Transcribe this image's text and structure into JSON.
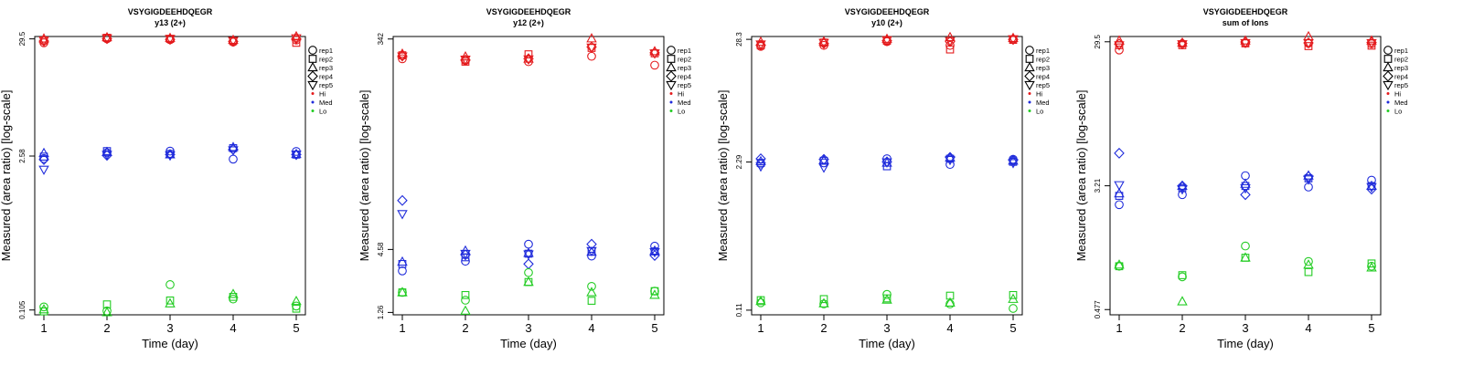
{
  "colors": {
    "Hi": "#e41a1c",
    "Med": "#1f2bdb",
    "Lo": "#22cc22",
    "axis": "#000000"
  },
  "legend": {
    "reps": [
      "rep1",
      "rep2",
      "rep3",
      "rep4",
      "rep5"
    ],
    "groups": [
      "Hi",
      "Med",
      "Lo"
    ],
    "placement": "top-right, outside plot"
  },
  "chart_data": [
    {
      "type": "scatter",
      "scale": "log",
      "title": "VSYGIGDEEHDQEGR",
      "subtitle": "y13 (2+)",
      "xlabel": "Time (day)",
      "ylabel": "Measured (area ratio) [log-scale]",
      "x_ticks": [
        "1",
        "2",
        "3",
        "4",
        "5"
      ],
      "y_ticks": [
        {
          "value": 29.5,
          "label": "29.5"
        },
        {
          "value": 2.58,
          "label": "2.58"
        },
        {
          "value": 0.105,
          "label": "0.105"
        }
      ],
      "ylim": [
        0.095,
        31
      ],
      "series": [
        {
          "group": "Hi",
          "rep": "rep1",
          "x": [
            1,
            2,
            3,
            4,
            5
          ],
          "y": [
            27.2,
            29.5,
            29.0,
            27.6,
            28.8
          ]
        },
        {
          "group": "Hi",
          "rep": "rep2",
          "x": [
            1,
            2,
            3,
            4,
            5
          ],
          "y": [
            28.5,
            30.2,
            29.5,
            28.2,
            27.2
          ]
        },
        {
          "group": "Hi",
          "rep": "rep3",
          "x": [
            1,
            2,
            3,
            4,
            5
          ],
          "y": [
            29.6,
            30.4,
            30.0,
            28.8,
            31.0
          ]
        },
        {
          "group": "Hi",
          "rep": "rep4",
          "x": [
            1,
            2,
            3,
            4,
            5
          ],
          "y": [
            28.2,
            29.6,
            29.2,
            28.0,
            29.6
          ]
        },
        {
          "group": "Hi",
          "rep": "rep5",
          "x": [
            1,
            2,
            3,
            4,
            5
          ],
          "y": [
            28.6,
            30.0,
            29.6,
            28.4,
            30.0
          ]
        },
        {
          "group": "Med",
          "rep": "rep1",
          "x": [
            1,
            2,
            3,
            4,
            5
          ],
          "y": [
            2.45,
            2.76,
            2.86,
            2.42,
            2.84
          ]
        },
        {
          "group": "Med",
          "rep": "rep2",
          "x": [
            1,
            2,
            3,
            4,
            5
          ],
          "y": [
            2.55,
            2.86,
            2.7,
            3.04,
            2.66
          ]
        },
        {
          "group": "Med",
          "rep": "rep3",
          "x": [
            1,
            2,
            3,
            4,
            5
          ],
          "y": [
            2.74,
            2.8,
            2.66,
            3.1,
            2.68
          ]
        },
        {
          "group": "Med",
          "rep": "rep4",
          "x": [
            1,
            2,
            3,
            4,
            5
          ],
          "y": [
            2.4,
            2.62,
            2.66,
            2.96,
            2.66
          ]
        },
        {
          "group": "Med",
          "rep": "rep5",
          "x": [
            1,
            2,
            3,
            4,
            5
          ],
          "y": [
            1.95,
            2.66,
            2.62,
            2.92,
            2.66
          ]
        },
        {
          "group": "Lo",
          "rep": "rep1",
          "x": [
            1,
            2,
            3,
            4,
            5
          ],
          "y": [
            0.112,
            0.103,
            0.178,
            0.132,
            0.114
          ]
        },
        {
          "group": "Lo",
          "rep": "rep2",
          "x": [
            1,
            2,
            3,
            4,
            5
          ],
          "y": [
            0.102,
            0.118,
            0.128,
            0.138,
            0.108
          ]
        },
        {
          "group": "Lo",
          "rep": "rep3",
          "x": [
            1,
            2,
            3,
            4,
            5
          ],
          "y": [
            0.106,
            0.1,
            0.12,
            0.146,
            0.126
          ]
        }
      ]
    },
    {
      "type": "scatter",
      "scale": "log",
      "title": "VSYGIGDEEHDQEGR",
      "subtitle": "y12 (2+)",
      "xlabel": "Time (day)",
      "ylabel": "Measured (area ratio) [log-scale]",
      "x_ticks": [
        "1",
        "2",
        "3",
        "4",
        "5"
      ],
      "y_ticks": [
        {
          "value": 342,
          "label": "342"
        },
        {
          "value": 4.58,
          "label": "4.58"
        },
        {
          "value": 1.26,
          "label": "1.26"
        }
      ],
      "ylim": [
        1.2,
        360
      ],
      "series": [
        {
          "group": "Hi",
          "rep": "rep1",
          "x": [
            1,
            2,
            3,
            4,
            5
          ],
          "y": [
            228,
            220,
            215,
            240,
            200
          ]
        },
        {
          "group": "Hi",
          "rep": "rep2",
          "x": [
            1,
            2,
            3,
            4,
            5
          ],
          "y": [
            245,
            215,
            250,
            285,
            255
          ]
        },
        {
          "group": "Hi",
          "rep": "rep3",
          "x": [
            1,
            2,
            3,
            4,
            5
          ],
          "y": [
            252,
            238,
            228,
            345,
            265
          ]
        },
        {
          "group": "Hi",
          "rep": "rep4",
          "x": [
            1,
            2,
            3,
            4,
            5
          ],
          "y": [
            242,
            222,
            228,
            290,
            258
          ]
        },
        {
          "group": "Hi",
          "rep": "rep5",
          "x": [
            1,
            2,
            3,
            4,
            5
          ],
          "y": [
            240,
            225,
            226,
            288,
            255
          ]
        },
        {
          "group": "Med",
          "rep": "rep1",
          "x": [
            1,
            2,
            3,
            4,
            5
          ],
          "y": [
            2.95,
            3.6,
            5.1,
            4.0,
            4.9
          ]
        },
        {
          "group": "Med",
          "rep": "rep2",
          "x": [
            1,
            2,
            3,
            4,
            5
          ],
          "y": [
            3.4,
            3.9,
            4.2,
            4.4,
            4.4
          ]
        },
        {
          "group": "Med",
          "rep": "rep3",
          "x": [
            1,
            2,
            3,
            4,
            5
          ],
          "y": [
            3.55,
            4.45,
            4.25,
            4.35,
            4.45
          ]
        },
        {
          "group": "Med",
          "rep": "rep4",
          "x": [
            1,
            2,
            3,
            4,
            5
          ],
          "y": [
            12.5,
            4.1,
            3.4,
            5.1,
            4.05
          ]
        },
        {
          "group": "Med",
          "rep": "rep5",
          "x": [
            1,
            2,
            3,
            4,
            5
          ],
          "y": [
            9.5,
            4.2,
            4.15,
            4.45,
            4.35
          ]
        },
        {
          "group": "Lo",
          "rep": "rep1",
          "x": [
            1,
            2,
            3,
            4,
            5
          ],
          "y": [
            1.9,
            1.62,
            2.85,
            2.15,
            1.95
          ]
        },
        {
          "group": "Lo",
          "rep": "rep2",
          "x": [
            1,
            2,
            3,
            4,
            5
          ],
          "y": [
            1.9,
            1.8,
            2.35,
            1.6,
            1.95
          ]
        },
        {
          "group": "Lo",
          "rep": "rep3",
          "x": [
            1,
            2,
            3,
            4,
            5
          ],
          "y": [
            1.9,
            1.3,
            2.35,
            1.9,
            1.8
          ]
        }
      ]
    },
    {
      "type": "scatter",
      "scale": "log",
      "title": "VSYGIGDEEHDQEGR",
      "subtitle": "y10 (2+)",
      "xlabel": "Time (day)",
      "ylabel": "Measured (area ratio) [log-scale]",
      "x_ticks": [
        "1",
        "2",
        "3",
        "4",
        "5"
      ],
      "y_ticks": [
        {
          "value": 28.3,
          "label": "28.3"
        },
        {
          "value": 2.29,
          "label": "2.29"
        },
        {
          "value": 0.11,
          "label": "0.11"
        }
      ],
      "ylim": [
        0.1,
        30
      ],
      "series": [
        {
          "group": "Hi",
          "rep": "rep1",
          "x": [
            1,
            2,
            3,
            4,
            5
          ],
          "y": [
            24.5,
            25.0,
            27.0,
            25.0,
            28.3
          ]
        },
        {
          "group": "Hi",
          "rep": "rep2",
          "x": [
            1,
            2,
            3,
            4,
            5
          ],
          "y": [
            25.0,
            26.5,
            27.5,
            23.0,
            28.0
          ]
        },
        {
          "group": "Hi",
          "rep": "rep3",
          "x": [
            1,
            2,
            3,
            4,
            5
          ],
          "y": [
            26.8,
            27.0,
            28.5,
            29.5,
            29.0
          ]
        },
        {
          "group": "Hi",
          "rep": "rep4",
          "x": [
            1,
            2,
            3,
            4,
            5
          ],
          "y": [
            25.2,
            26.0,
            27.5,
            27.0,
            28.2
          ]
        },
        {
          "group": "Hi",
          "rep": "rep5",
          "x": [
            1,
            2,
            3,
            4,
            5
          ],
          "y": [
            25.6,
            26.4,
            27.9,
            27.4,
            28.5
          ]
        },
        {
          "group": "Med",
          "rep": "rep1",
          "x": [
            1,
            2,
            3,
            4,
            5
          ],
          "y": [
            2.2,
            2.25,
            2.45,
            2.18,
            2.42
          ]
        },
        {
          "group": "Med",
          "rep": "rep2",
          "x": [
            1,
            2,
            3,
            4,
            5
          ],
          "y": [
            2.25,
            2.35,
            2.1,
            2.45,
            2.3
          ]
        },
        {
          "group": "Med",
          "rep": "rep3",
          "x": [
            1,
            2,
            3,
            4,
            5
          ],
          "y": [
            2.32,
            2.38,
            2.25,
            2.5,
            2.35
          ]
        },
        {
          "group": "Med",
          "rep": "rep4",
          "x": [
            1,
            2,
            3,
            4,
            5
          ],
          "y": [
            2.45,
            2.42,
            2.3,
            2.52,
            2.38
          ]
        },
        {
          "group": "Med",
          "rep": "rep5",
          "x": [
            1,
            2,
            3,
            4,
            5
          ],
          "y": [
            2.1,
            2.05,
            2.28,
            2.4,
            2.25
          ]
        },
        {
          "group": "Lo",
          "rep": "rep1",
          "x": [
            1,
            2,
            3,
            4,
            5
          ],
          "y": [
            0.128,
            0.125,
            0.152,
            0.125,
            0.114
          ]
        },
        {
          "group": "Lo",
          "rep": "rep2",
          "x": [
            1,
            2,
            3,
            4,
            5
          ],
          "y": [
            0.135,
            0.138,
            0.14,
            0.148,
            0.15
          ]
        },
        {
          "group": "Lo",
          "rep": "rep3",
          "x": [
            1,
            2,
            3,
            4,
            5
          ],
          "y": [
            0.132,
            0.126,
            0.136,
            0.128,
            0.138
          ]
        }
      ]
    },
    {
      "type": "scatter",
      "scale": "log",
      "title": "VSYGIGDEEHDQEGR",
      "subtitle": "sum of Ions",
      "xlabel": "Time (day)",
      "ylabel": "Measured (area ratio) [log-scale]",
      "x_ticks": [
        "1",
        "2",
        "3",
        "4",
        "5"
      ],
      "y_ticks": [
        {
          "value": 29.5,
          "label": "29.5"
        },
        {
          "value": 3.21,
          "label": "3.21"
        },
        {
          "value": 0.477,
          "label": "0.477"
        }
      ],
      "ylim": [
        0.44,
        32
      ],
      "series": [
        {
          "group": "Hi",
          "rep": "rep1",
          "x": [
            1,
            2,
            3,
            4,
            5
          ],
          "y": [
            26.0,
            28.6,
            29.0,
            28.8,
            28.6
          ]
        },
        {
          "group": "Hi",
          "rep": "rep2",
          "x": [
            1,
            2,
            3,
            4,
            5
          ],
          "y": [
            28.0,
            28.0,
            28.8,
            27.6,
            27.8
          ]
        },
        {
          "group": "Hi",
          "rep": "rep3",
          "x": [
            1,
            2,
            3,
            4,
            5
          ],
          "y": [
            30.0,
            29.0,
            30.0,
            32.0,
            30.0
          ]
        },
        {
          "group": "Hi",
          "rep": "rep4",
          "x": [
            1,
            2,
            3,
            4,
            5
          ],
          "y": [
            28.5,
            28.8,
            29.4,
            29.0,
            29.2
          ]
        },
        {
          "group": "Hi",
          "rep": "rep5",
          "x": [
            1,
            2,
            3,
            4,
            5
          ],
          "y": [
            28.0,
            28.5,
            29.0,
            29.0,
            29.0
          ]
        },
        {
          "group": "Med",
          "rep": "rep1",
          "x": [
            1,
            2,
            3,
            4,
            5
          ],
          "y": [
            2.4,
            2.8,
            3.75,
            3.15,
            3.5
          ]
        },
        {
          "group": "Med",
          "rep": "rep2",
          "x": [
            1,
            2,
            3,
            4,
            5
          ],
          "y": [
            2.75,
            3.1,
            3.2,
            3.6,
            3.2
          ]
        },
        {
          "group": "Med",
          "rep": "rep3",
          "x": [
            1,
            2,
            3,
            4,
            5
          ],
          "y": [
            2.85,
            3.2,
            3.3,
            3.75,
            3.2
          ]
        },
        {
          "group": "Med",
          "rep": "rep4",
          "x": [
            1,
            2,
            3,
            4,
            5
          ],
          "y": [
            5.3,
            3.2,
            2.8,
            3.7,
            3.05
          ]
        },
        {
          "group": "Med",
          "rep": "rep5",
          "x": [
            1,
            2,
            3,
            4,
            5
          ],
          "y": [
            3.25,
            3.05,
            3.1,
            3.55,
            3.15
          ]
        },
        {
          "group": "Lo",
          "rep": "rep1",
          "x": [
            1,
            2,
            3,
            4,
            5
          ],
          "y": [
            0.93,
            0.79,
            1.27,
            1.0,
            0.93
          ]
        },
        {
          "group": "Lo",
          "rep": "rep2",
          "x": [
            1,
            2,
            3,
            4,
            5
          ],
          "y": [
            0.93,
            0.81,
            1.06,
            0.85,
            0.97
          ]
        },
        {
          "group": "Lo",
          "rep": "rep3",
          "x": [
            1,
            2,
            3,
            4,
            5
          ],
          "y": [
            0.95,
            0.54,
            1.06,
            0.95,
            0.91
          ]
        }
      ]
    }
  ]
}
